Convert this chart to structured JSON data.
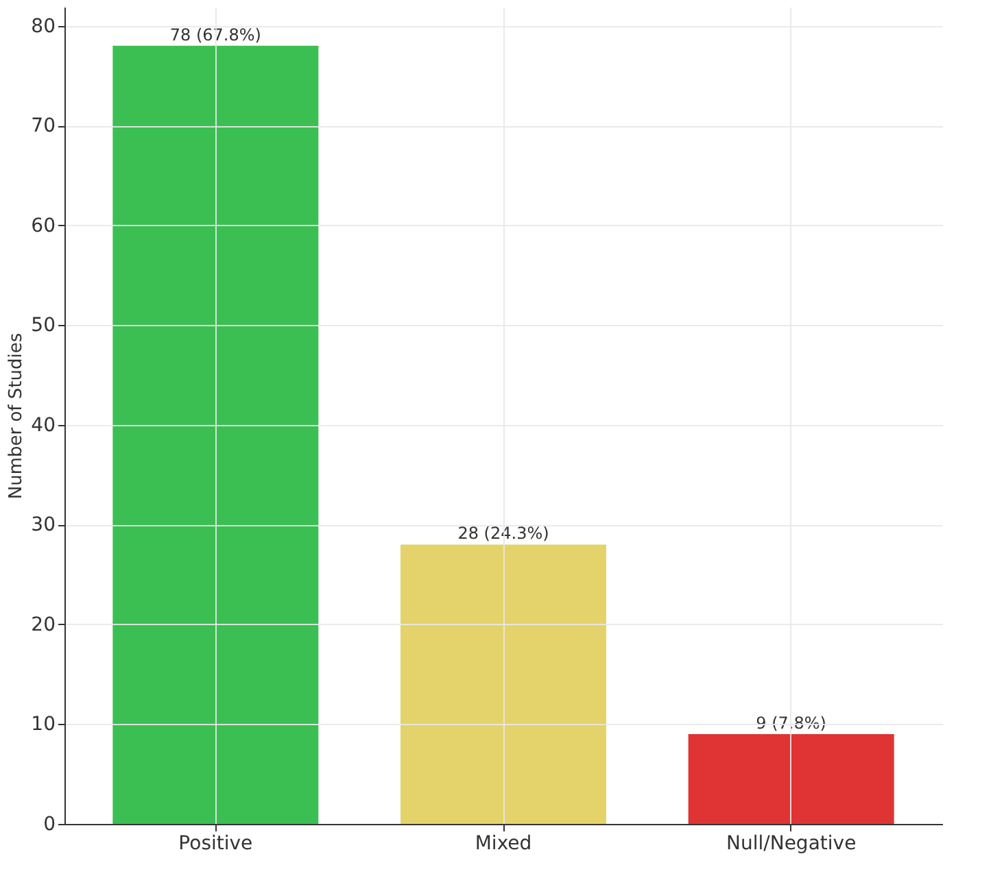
{
  "chart_data": {
    "type": "bar",
    "categories": [
      "Positive",
      "Mixed",
      "Null/Negative"
    ],
    "values": [
      78,
      28,
      9
    ],
    "colors": [
      "#3bbf52",
      "#e3d36a",
      "#e03333"
    ],
    "value_labels": [
      "78 (67.8%)",
      "28 (24.3%)",
      "9 (7.8%)"
    ],
    "ylabel": "Number of Studies",
    "ylim": [
      0,
      81.9
    ],
    "yticks": [
      0,
      10,
      20,
      30,
      40,
      50,
      60,
      70,
      80
    ],
    "grid": true
  }
}
